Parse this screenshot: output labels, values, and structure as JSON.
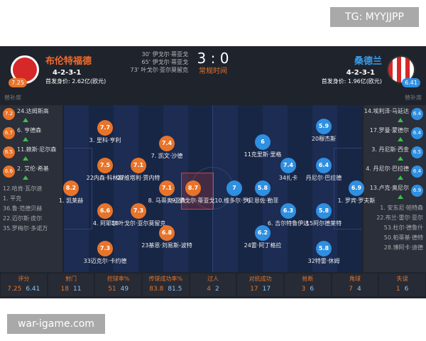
{
  "watermark_top": "TG: MYYJJPP",
  "watermark_bottom": "war-igame.com",
  "match": {
    "goals": [
      "30' 伊戈尔·蒂亚戈",
      "65' 伊戈尔·蒂亚戈",
      "73' 叶戈尔·亚尔莫留克"
    ],
    "score": "3 : 0",
    "status": "常规时间"
  },
  "home": {
    "rating": "7.25",
    "name": "布伦特福德",
    "formation": "4-2-3-1",
    "value": "首发身价: 2.62亿(欧元)",
    "bench_title": "替补席",
    "bench": [
      {
        "rating": "7.2",
        "name": "24.达姆斯高"
      },
      {
        "rating": "6.7",
        "name": "6. 亨德森"
      },
      {
        "rating": "6.5",
        "name": "11.赖斯·尼尔森"
      },
      {
        "rating": "6.6",
        "name": "2. 艾伦·希基"
      },
      {
        "name": "12.哈肯·瓦尔迪"
      },
      {
        "name": "1. 平克"
      },
      {
        "name": "36.鲁·范德贝赫"
      },
      {
        "name": "22.迈尔斯·皮尔"
      },
      {
        "name": "35.罗梅尔·多诺万"
      }
    ],
    "players": [
      {
        "rating": "8.2",
        "name": "1. 凯莱赫"
      },
      {
        "rating": "7.7",
        "name": "3. 里科·亨利"
      },
      {
        "rating": "7.5",
        "name": "22内森·科林斯"
      },
      {
        "rating": "7.1",
        "name": "27维塔利·贾内特"
      },
      {
        "rating": "7.4",
        "name": "7. 凯文·沙德"
      },
      {
        "rating": "7.1",
        "name": "8. 马蒂奥·亚森"
      },
      {
        "rating": "6.6",
        "name": "4. 阿耶尔"
      },
      {
        "rating": "7.3",
        "name": "18叶戈尔·亚尔莫留克"
      },
      {
        "rating": "6.8",
        "name": "23基恩·刘易斯-波特"
      },
      {
        "rating": "7.3",
        "name": "33迈克尔·卡约德"
      },
      {
        "rating": "8.7",
        "name": "9. 伊戈尔·蒂亚戈"
      }
    ]
  },
  "away": {
    "rating": "6.41",
    "name": "桑德兰",
    "formation": "4-2-3-1",
    "value": "首发身价: 1.96亿(欧元)",
    "bench_title": "替补席",
    "bench": [
      {
        "rating": "6.4",
        "name": "14.埃利泽·马延达"
      },
      {
        "rating": "6.4",
        "name": "17.罗曼·蒙德尔"
      },
      {
        "rating": "6.5",
        "name": "3. 丹尼斯·西金"
      },
      {
        "rating": "6.4",
        "name": "4. 丹尼尔·巴拉德"
      },
      {
        "rating": "6.9",
        "name": "13.卢克·奥尼尔"
      },
      {
        "name": "1. 安东尼·帕特森"
      },
      {
        "name": "22.布兰·雷尔·亚尔"
      },
      {
        "name": "53.杜尔·德鲁什"
      },
      {
        "name": "50.帕蒂基·德特"
      },
      {
        "name": "28.博阿卡·迪德"
      }
    ],
    "players": [
      {
        "rating": "6.9",
        "name": "1. 罗宾·罗夫斯"
      },
      {
        "rating": "5.9",
        "name": "20穆杰斯"
      },
      {
        "rating": "6",
        "name": "11克里斯·里格"
      },
      {
        "rating": "7.4",
        "name": "34扎卡"
      },
      {
        "rating": "6.4",
        "name": "丹尼尔·巴拉德"
      },
      {
        "rating": "7",
        "name": "10.维多尔·罗贝"
      },
      {
        "rating": "5.8",
        "name": "6. 恩佐·勒菲"
      },
      {
        "rating": "6.3",
        "name": "6. 吉尔特鲁伊达"
      },
      {
        "rating": "5.8",
        "name": "15阿尔德莱特"
      },
      {
        "rating": "6.2",
        "name": "24雷·阿丁格拉"
      },
      {
        "rating": "5.8",
        "name": "32特雷·休姆"
      }
    ]
  },
  "stats": [
    {
      "label": "评分",
      "home": "7.25",
      "away": "6.41"
    },
    {
      "label": "射门",
      "home": "18",
      "away": "11"
    },
    {
      "label": "控球率%",
      "home": "51",
      "away": "49"
    },
    {
      "label": "传球成功率%",
      "home": "83.8",
      "away": "81.5"
    },
    {
      "label": "过人",
      "home": "4",
      "away": "2"
    },
    {
      "label": "对抗成功",
      "home": "17",
      "away": "17"
    },
    {
      "label": "抢断",
      "home": "3",
      "away": "6"
    },
    {
      "label": "角球",
      "home": "7",
      "away": "4"
    },
    {
      "label": "失误",
      "home": "1",
      "away": "6"
    }
  ]
}
